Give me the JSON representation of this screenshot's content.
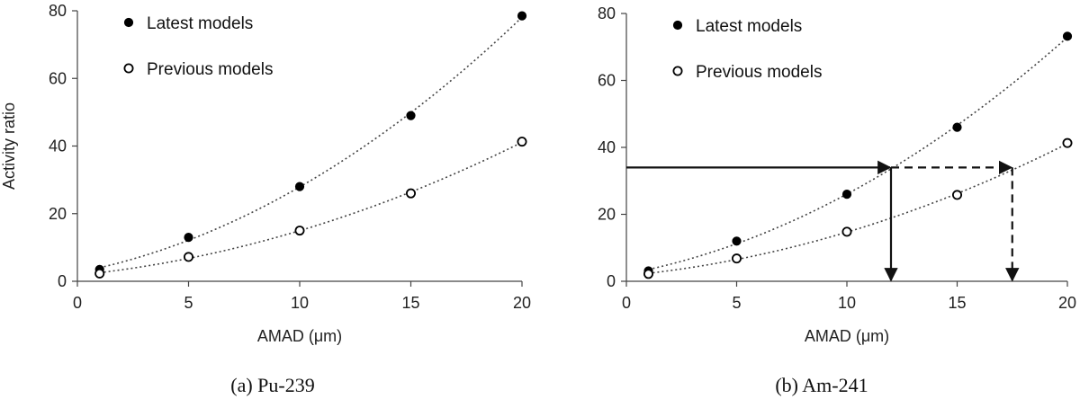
{
  "chart_data": [
    {
      "type": "scatter",
      "caption": "(a) Pu-239",
      "title": "",
      "xlabel": "AMAD (μm)",
      "ylabel": "Activity ratio",
      "xlim": [
        0,
        20
      ],
      "ylim": [
        0,
        80
      ],
      "xticks": [
        "0",
        "5",
        "10",
        "15",
        "20"
      ],
      "yticks": [
        "0",
        "20",
        "40",
        "60",
        "80"
      ],
      "legend_position": "top-left",
      "series": [
        {
          "name": "Latest models",
          "marker": "filled-circle",
          "x": [
            1,
            5,
            10,
            15,
            20
          ],
          "y": [
            3.5,
            13,
            28,
            49,
            78.5
          ]
        },
        {
          "name": "Previous models",
          "marker": "open-circle",
          "x": [
            1,
            5,
            10,
            15,
            20
          ],
          "y": [
            2.3,
            7.2,
            15,
            26,
            41.3
          ]
        }
      ],
      "trendlines": "dotted quadratic fits"
    },
    {
      "type": "scatter",
      "caption": "(b) Am-241",
      "title": "",
      "xlabel": "AMAD (μm)",
      "ylabel": "",
      "xlim": [
        0,
        20
      ],
      "ylim": [
        0,
        80
      ],
      "xticks": [
        "0",
        "5",
        "10",
        "15",
        "20"
      ],
      "yticks": [
        "0",
        "20",
        "40",
        "60",
        "80"
      ],
      "legend_position": "top-left",
      "series": [
        {
          "name": "Latest models",
          "marker": "filled-circle",
          "x": [
            1,
            5,
            10,
            15,
            20
          ],
          "y": [
            3.1,
            12,
            26,
            46,
            73.2
          ]
        },
        {
          "name": "Previous models",
          "marker": "open-circle",
          "x": [
            1,
            5,
            10,
            15,
            20
          ],
          "y": [
            2.2,
            6.8,
            14.8,
            25.8,
            41.3
          ]
        }
      ],
      "trendlines": "dotted quadratic fits",
      "annotations": {
        "level_y": 34,
        "solid_arrow_x": 12,
        "dashed_arrow_x": 17.5
      }
    }
  ]
}
